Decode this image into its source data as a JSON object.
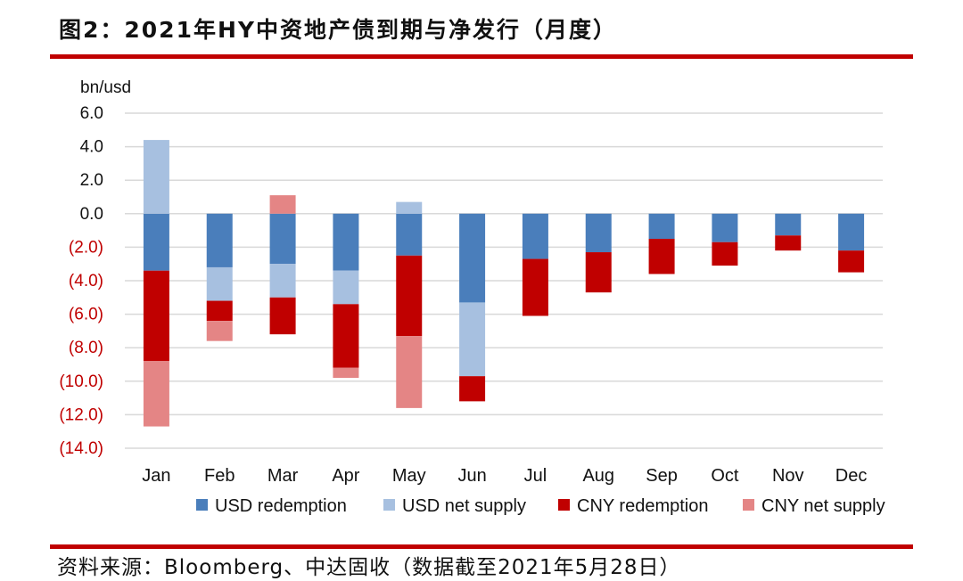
{
  "header": {
    "title": "图2：2021年HY中资地产债到期与净发行（月度）"
  },
  "footer": {
    "source": "资料来源：Bloomberg、中达固收（数据截至2021年5月28日）"
  },
  "colors": {
    "rule": "#c00000",
    "usd_redemption": "#4a7ebb",
    "usd_net_supply": "#a7c0e0",
    "cny_redemption": "#c00000",
    "cny_net_supply": "#e48585",
    "negative_tick": "#c00000"
  },
  "chart_data": {
    "type": "bar",
    "stacked": true,
    "unit_label": "bn/usd",
    "categories": [
      "Jan",
      "Feb",
      "Mar",
      "Apr",
      "May",
      "Jun",
      "Jul",
      "Aug",
      "Sep",
      "Oct",
      "Nov",
      "Dec"
    ],
    "ylim": [
      -14,
      6
    ],
    "yticks": [
      6,
      4,
      2,
      0,
      -2,
      -4,
      -6,
      -8,
      -10,
      -12,
      -14
    ],
    "ytick_labels": [
      "6.0",
      "4.0",
      "2.0",
      "0.0",
      "(2.0)",
      "(4.0)",
      "(6.0)",
      "(8.0)",
      "(10.0)",
      "(12.0)",
      "(14.0)"
    ],
    "grid": true,
    "legend_position": "bottom",
    "series": [
      {
        "name": "USD redemption",
        "key": "usd_redemption",
        "values": [
          -3.4,
          -3.2,
          -3.0,
          -3.4,
          -2.5,
          -5.3,
          -2.7,
          -2.3,
          -1.5,
          -1.7,
          -1.3,
          -2.2
        ]
      },
      {
        "name": "USD net supply",
        "key": "usd_net_supply",
        "values": [
          4.4,
          -2.0,
          -2.0,
          -2.0,
          0.7,
          -4.4,
          0,
          0,
          0,
          0,
          0,
          0
        ]
      },
      {
        "name": "CNY redemption",
        "key": "cny_redemption",
        "values": [
          -5.4,
          -1.2,
          -2.2,
          -3.8,
          -4.8,
          -1.5,
          -3.4,
          -2.4,
          -2.1,
          -1.4,
          -0.9,
          -1.3
        ]
      },
      {
        "name": "CNY net supply",
        "key": "cny_net_supply",
        "values": [
          -3.9,
          -1.2,
          1.1,
          -0.6,
          -4.3,
          0,
          0,
          0,
          0,
          0,
          0,
          0
        ]
      }
    ]
  }
}
